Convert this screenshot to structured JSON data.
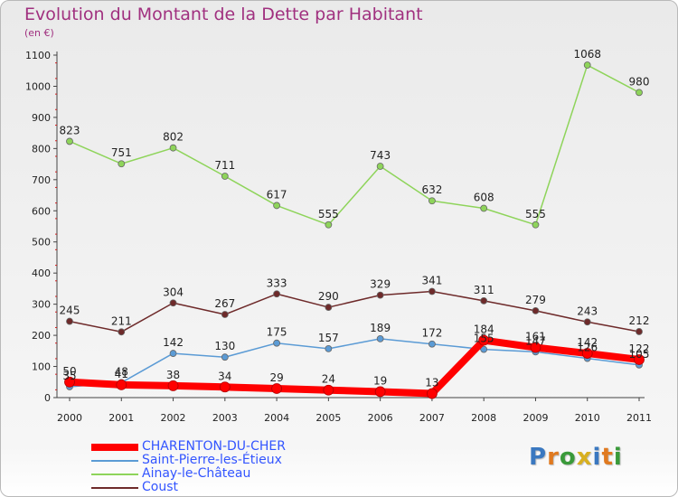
{
  "title": "Evolution du Montant de la Dette par Habitant",
  "subtitle": "(en €)",
  "logo": {
    "text": "Proxiti",
    "colors": [
      "#3a78c0",
      "#e07a20",
      "#3a9a3a",
      "#d8b020"
    ]
  },
  "chart_data": {
    "type": "line",
    "title": "Evolution du Montant de la Dette par Habitant",
    "subtitle": "(en €)",
    "xlabel": "",
    "ylabel": "",
    "x": [
      2000,
      2001,
      2002,
      2003,
      2004,
      2005,
      2006,
      2007,
      2008,
      2009,
      2010,
      2011
    ],
    "ylim": [
      0,
      1100
    ],
    "yticks": [
      0,
      100,
      200,
      300,
      400,
      500,
      600,
      700,
      800,
      900,
      1000,
      1100
    ],
    "grid": false,
    "legend_position": "bottom-left",
    "series": [
      {
        "name": "CHARENTON-DU-CHER",
        "color": "#ff0000",
        "label_color": "#3355ff",
        "thick": true,
        "values": [
          50,
          41,
          38,
          34,
          29,
          24,
          19,
          13,
          184,
          161,
          142,
          122
        ]
      },
      {
        "name": "Saint-Pierre-les-Étieux",
        "color": "#5b9bd5",
        "label_color": "#3355ff",
        "thick": false,
        "values": [
          35,
          48,
          142,
          130,
          175,
          157,
          189,
          172,
          155,
          147,
          126,
          105
        ]
      },
      {
        "name": "Ainay-le-Château",
        "color": "#8ed45a",
        "label_color": "#3355ff",
        "thick": false,
        "values": [
          823,
          751,
          802,
          711,
          617,
          555,
          743,
          632,
          608,
          555,
          1068,
          980
        ]
      },
      {
        "name": "Coust",
        "color": "#6e2a2a",
        "label_color": "#3355ff",
        "thick": false,
        "values": [
          245,
          211,
          304,
          267,
          333,
          290,
          329,
          341,
          311,
          279,
          243,
          212
        ]
      }
    ]
  }
}
